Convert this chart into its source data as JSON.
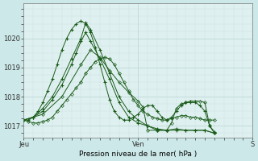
{
  "xlabel": "Pression niveau de la mer( hPa )",
  "bg_color": "#cce8e8",
  "plot_bg": "#dff0f0",
  "grid_major_color": "#b8d4d4",
  "grid_minor_color": "#cce0e0",
  "line_colors": [
    "#1a5c1a",
    "#1a5c1a",
    "#1a5c1a",
    "#1a5c1a",
    "#1a5c1a"
  ],
  "ylim": [
    1016.6,
    1021.2
  ],
  "yticks": [
    1017,
    1018,
    1019,
    1020
  ],
  "xlim": [
    0,
    48
  ],
  "xtick_pos": [
    0,
    24,
    48
  ],
  "xtick_labels": [
    "Jeu",
    "Ven",
    "S"
  ],
  "series": [
    {
      "x": [
        0,
        1,
        2,
        3,
        4,
        5,
        6,
        7,
        8,
        9,
        10,
        11,
        12,
        13,
        14,
        15,
        16,
        17,
        18,
        19,
        20,
        21,
        22,
        23,
        24,
        25,
        26,
        27,
        28,
        29,
        30,
        31,
        32,
        33,
        34,
        35,
        36,
        37,
        38,
        39,
        40
      ],
      "y": [
        1017.2,
        1017.2,
        1017.3,
        1017.5,
        1017.8,
        1018.2,
        1018.6,
        1019.1,
        1019.6,
        1020.0,
        1020.3,
        1020.5,
        1020.6,
        1020.5,
        1020.2,
        1019.7,
        1019.1,
        1018.5,
        1017.9,
        1017.5,
        1017.3,
        1017.2,
        1017.2,
        1017.3,
        1017.4,
        1017.6,
        1017.7,
        1017.7,
        1017.5,
        1017.3,
        1017.2,
        1017.3,
        1017.5,
        1017.7,
        1017.8,
        1017.8,
        1017.8,
        1017.7,
        1017.5,
        1017.0,
        1016.8
      ],
      "marker": "+"
    },
    {
      "x": [
        0,
        1,
        2,
        3,
        4,
        5,
        6,
        7,
        8,
        9,
        10,
        11,
        12,
        13,
        14,
        15,
        16,
        17,
        18,
        19,
        20,
        21,
        22,
        23,
        24,
        25,
        26,
        27,
        28,
        29,
        30,
        31,
        32,
        33,
        34,
        35,
        36,
        37,
        38,
        39,
        40
      ],
      "y": [
        1017.2,
        1017.15,
        1017.1,
        1017.1,
        1017.15,
        1017.2,
        1017.3,
        1017.5,
        1017.7,
        1017.9,
        1018.1,
        1018.3,
        1018.5,
        1018.8,
        1019.0,
        1019.2,
        1019.3,
        1019.35,
        1019.3,
        1019.1,
        1018.8,
        1018.5,
        1018.2,
        1017.9,
        1017.7,
        1017.5,
        1017.4,
        1017.3,
        1017.25,
        1017.2,
        1017.2,
        1017.25,
        1017.3,
        1017.35,
        1017.35,
        1017.3,
        1017.3,
        1017.25,
        1017.2,
        1017.2,
        1017.2
      ],
      "marker": "D"
    },
    {
      "x": [
        0,
        2,
        4,
        6,
        8,
        10,
        12,
        13,
        14,
        16,
        18,
        20,
        22,
        24,
        26,
        28,
        30,
        32,
        34,
        36,
        38,
        40
      ],
      "y": [
        1017.2,
        1017.3,
        1017.6,
        1018.0,
        1018.6,
        1019.3,
        1020.0,
        1020.55,
        1020.3,
        1019.6,
        1018.8,
        1018.0,
        1017.5,
        1017.2,
        1017.0,
        1016.85,
        1016.85,
        1016.9,
        1016.85,
        1016.85,
        1016.85,
        1016.75
      ],
      "marker": "+"
    },
    {
      "x": [
        0,
        2,
        4,
        6,
        8,
        10,
        11,
        12,
        13,
        14,
        16,
        18,
        20,
        22,
        24,
        26,
        28,
        30,
        32,
        34,
        36,
        38,
        40
      ],
      "y": [
        1017.2,
        1017.3,
        1017.5,
        1017.9,
        1018.4,
        1019.1,
        1019.5,
        1019.9,
        1020.2,
        1019.9,
        1019.3,
        1018.6,
        1017.8,
        1017.3,
        1017.1,
        1017.0,
        1016.9,
        1016.85,
        1016.85,
        1016.85,
        1016.85,
        1016.85,
        1016.75
      ],
      "marker": "+"
    },
    {
      "x": [
        0,
        4,
        8,
        12,
        14,
        16,
        18,
        20,
        22,
        24,
        25,
        26,
        28,
        30,
        31,
        32,
        33,
        34,
        35,
        36,
        37,
        38,
        39,
        40
      ],
      "y": [
        1017.2,
        1017.4,
        1018.0,
        1019.1,
        1019.6,
        1019.35,
        1018.9,
        1018.5,
        1018.15,
        1017.85,
        1017.65,
        1016.85,
        1016.85,
        1016.85,
        1017.1,
        1017.6,
        1017.75,
        1017.8,
        1017.85,
        1017.85,
        1017.85,
        1017.8,
        1017.0,
        1016.75
      ],
      "marker": "D"
    }
  ]
}
